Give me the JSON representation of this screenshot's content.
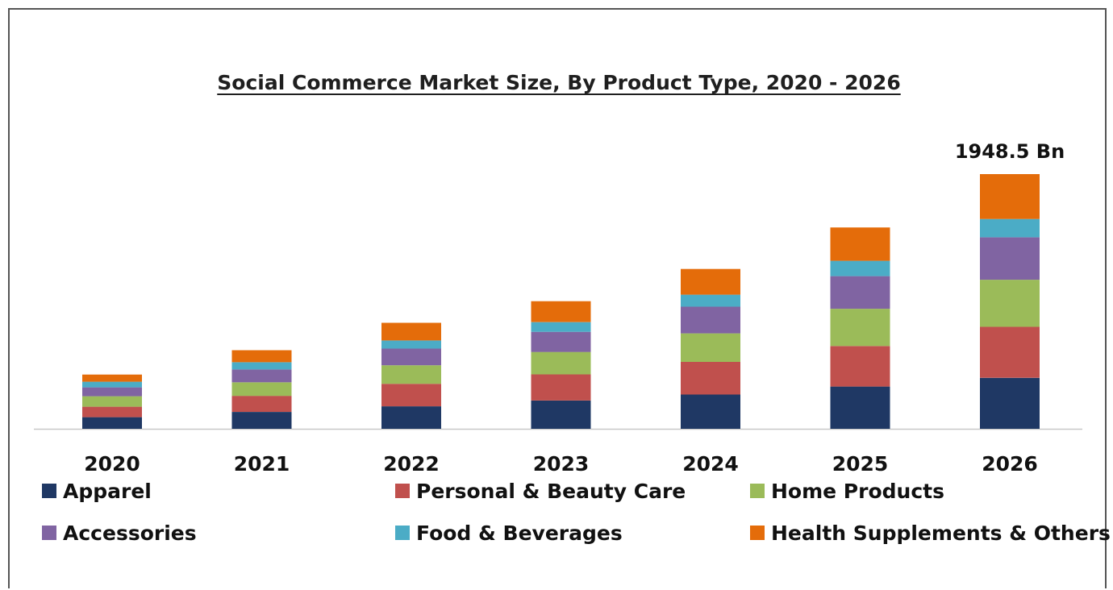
{
  "chart_data": {
    "type": "bar",
    "stacked": true,
    "title": "Social Commerce Market Size, By Product Type, 2020 - 2026",
    "xlabel": "",
    "ylabel": "",
    "grid": false,
    "legend_placement": "bottom",
    "categories": [
      "2020",
      "2021",
      "2022",
      "2023",
      "2024",
      "2025",
      "2026"
    ],
    "series": [
      {
        "name": "Apparel",
        "color": "#1f3864",
        "values": [
          89,
          129,
          172,
          216,
          262,
          323,
          390
        ]
      },
      {
        "name": "Personal & Beauty Care",
        "color": "#c0504d",
        "values": [
          80,
          123,
          172,
          200,
          250,
          310,
          390
        ]
      },
      {
        "name": "Home Products",
        "color": "#9bbb59",
        "values": [
          80,
          104,
          142,
          172,
          218,
          285,
          360
        ]
      },
      {
        "name": "Accessories",
        "color": "#8064a2",
        "values": [
          68,
          98,
          128,
          154,
          204,
          250,
          325
        ]
      },
      {
        "name": "Food & Beverages",
        "color": "#4bacc6",
        "values": [
          43,
          55,
          62,
          74,
          92,
          117,
          140
        ]
      },
      {
        "name": "Health Supplements & Others",
        "color": "#e46c0a",
        "values": [
          55,
          92,
          135,
          160,
          197,
          255,
          343.5
        ]
      }
    ],
    "annotations": [
      {
        "category": "2026",
        "text": "1948.5 Bn"
      }
    ],
    "ylim": [
      0,
      2000
    ]
  }
}
